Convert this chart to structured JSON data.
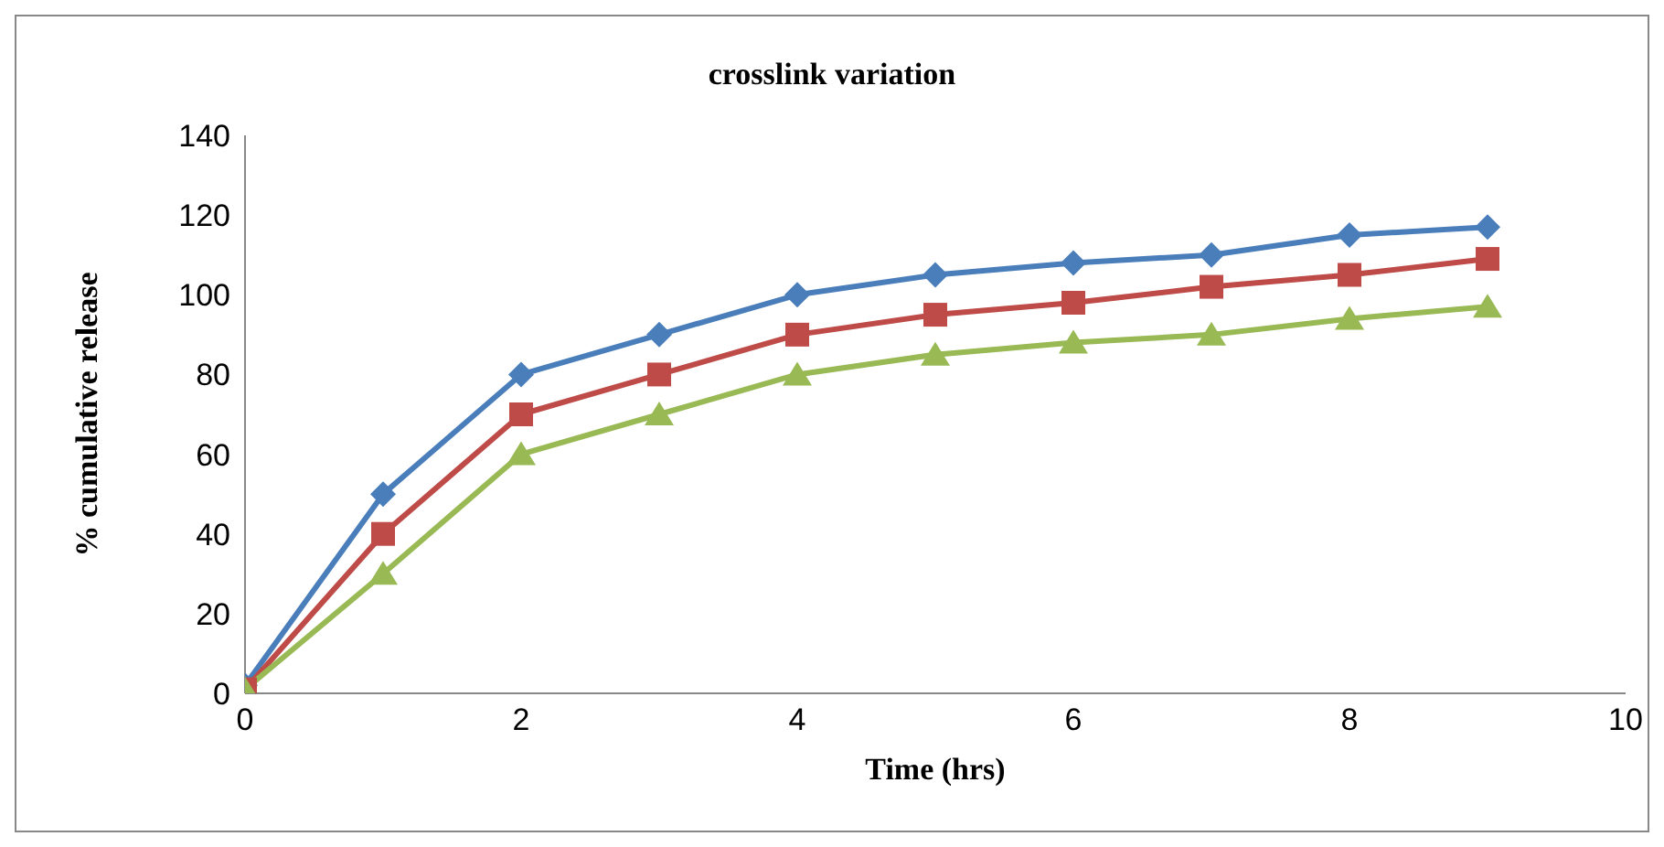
{
  "chart_data": {
    "type": "line",
    "title": "crosslink variation",
    "xlabel": "Time (hrs)",
    "ylabel": "% cumulative release",
    "x": [
      0,
      1,
      2,
      3,
      4,
      5,
      6,
      7,
      8,
      9
    ],
    "xlim": [
      0,
      10
    ],
    "xticks": [
      0,
      2,
      4,
      6,
      8,
      10
    ],
    "ylim": [
      0,
      140
    ],
    "yticks": [
      0,
      20,
      40,
      60,
      80,
      100,
      120,
      140
    ],
    "legend": false,
    "grid": false,
    "series": [
      {
        "color": "#4a7ebb",
        "marker": "diamond",
        "values": [
          2,
          50,
          80,
          90,
          100,
          105,
          108,
          110,
          115,
          117
        ]
      },
      {
        "color": "#be4b48",
        "marker": "square",
        "values": [
          1,
          40,
          70,
          80,
          90,
          95,
          98,
          102,
          105,
          109
        ]
      },
      {
        "color": "#98b954",
        "marker": "triangle",
        "values": [
          1,
          30,
          60,
          70,
          80,
          85,
          88,
          90,
          94,
          97
        ]
      }
    ]
  }
}
